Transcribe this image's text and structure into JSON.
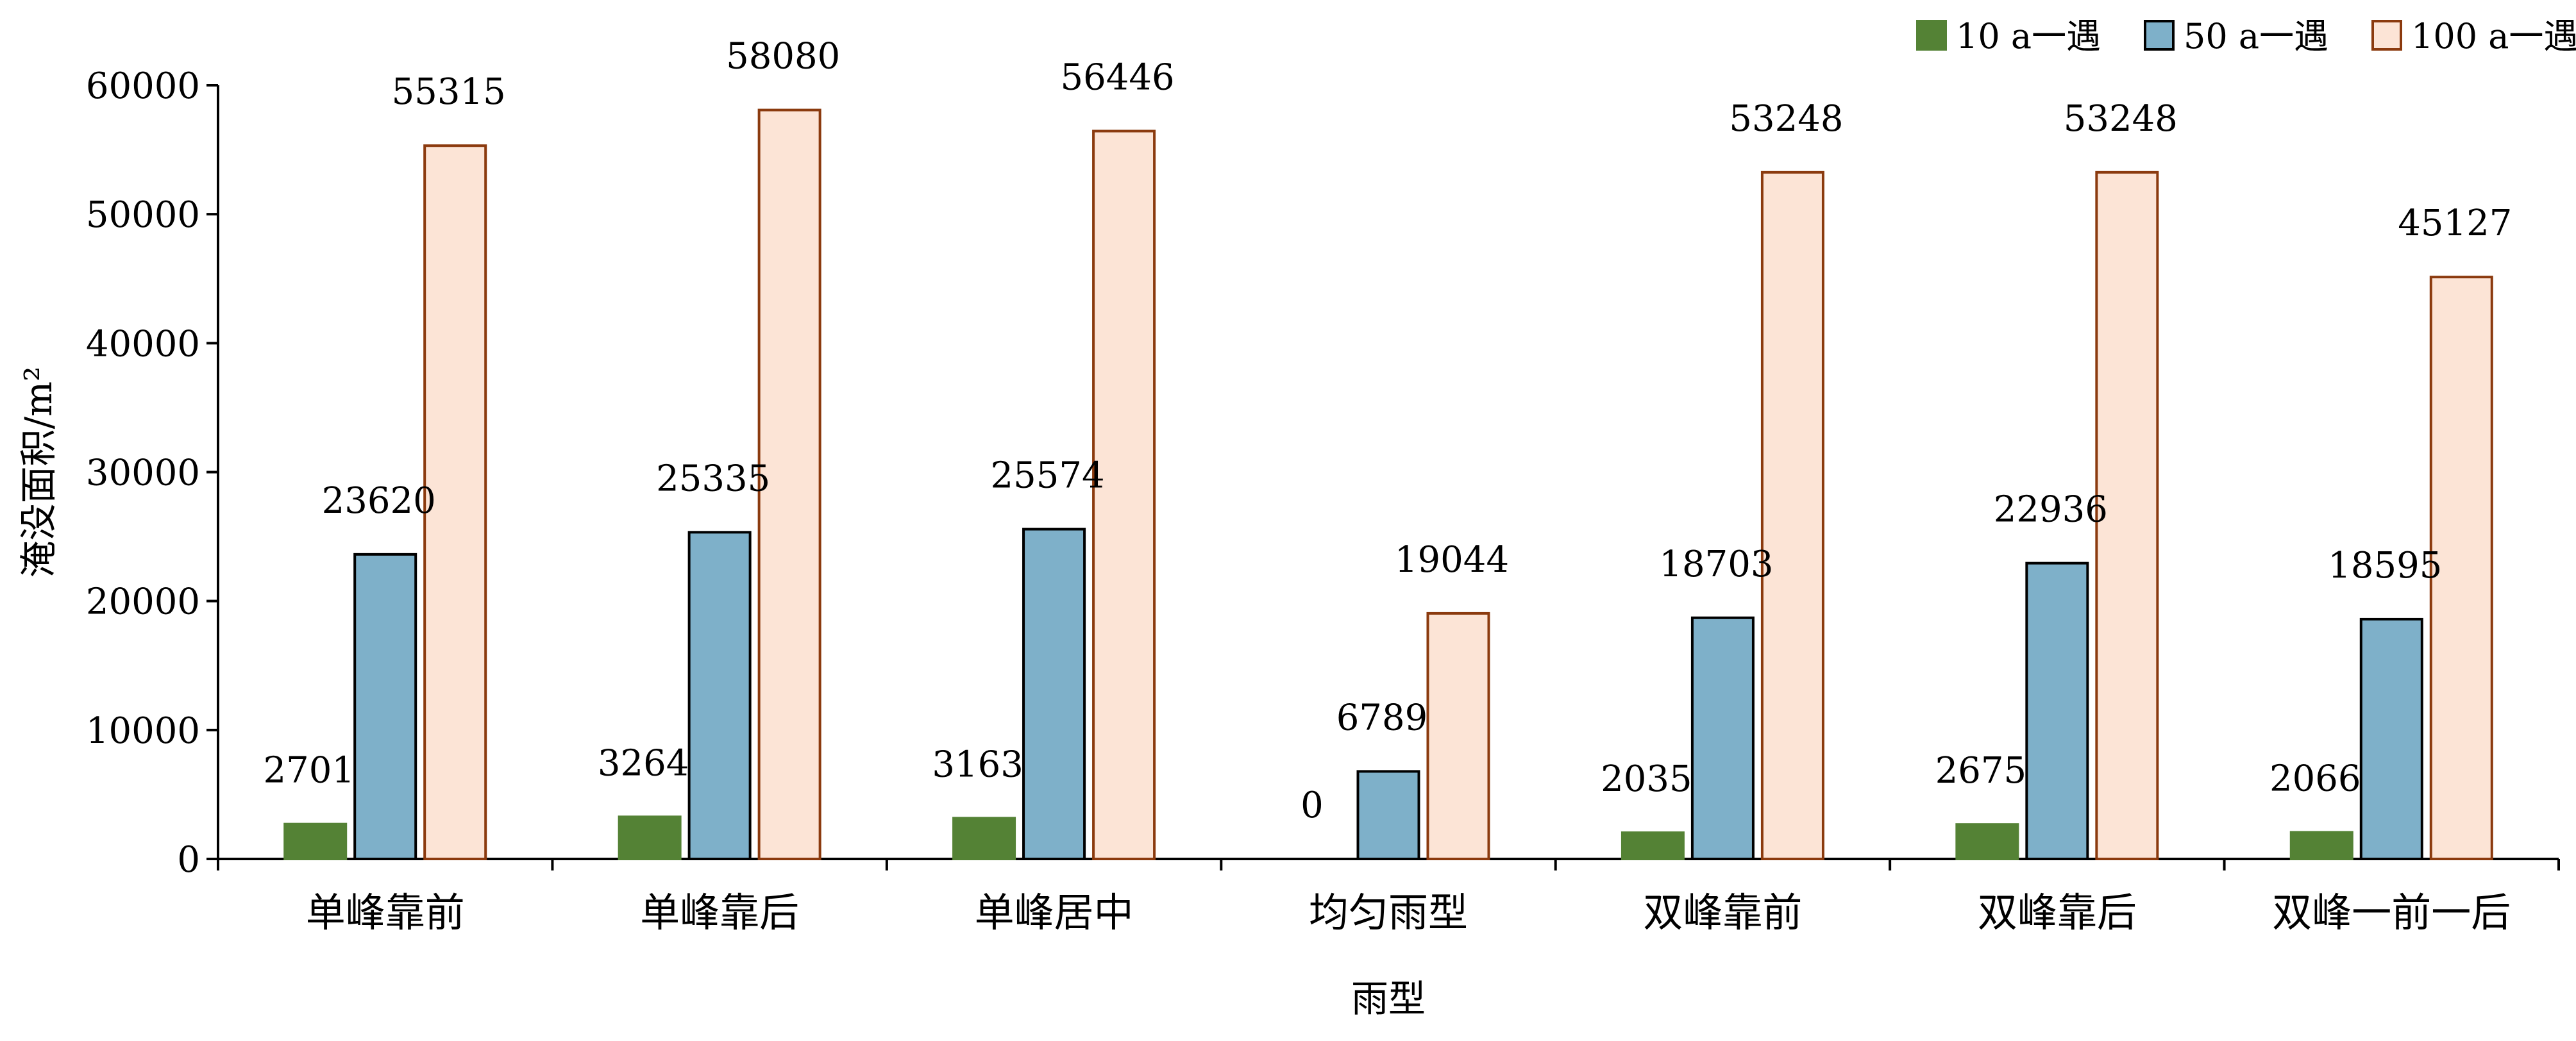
{
  "chart_data": {
    "type": "bar",
    "title": "",
    "xlabel": "雨型",
    "ylabel": "淹没面积/m²",
    "ylim": [
      0,
      60000
    ],
    "yticks": [
      0,
      10000,
      20000,
      30000,
      40000,
      50000,
      60000
    ],
    "categories": [
      "单峰靠前",
      "单峰靠后",
      "单峰居中",
      "均匀雨型",
      "双峰靠前",
      "双峰靠后",
      "双峰一前一后"
    ],
    "series": [
      {
        "name": "10 a一遇",
        "values": [
          2701,
          3264,
          3163,
          0,
          2035,
          2675,
          2066
        ],
        "fill": "#548235",
        "stroke": "#548235"
      },
      {
        "name": "50 a一遇",
        "values": [
          23620,
          25335,
          25574,
          6789,
          18703,
          22936,
          18595
        ],
        "fill": "#7eb0c9",
        "stroke": "#000000"
      },
      {
        "name": "100 a一遇",
        "values": [
          55315,
          58080,
          56446,
          19044,
          53248,
          53248,
          45127
        ],
        "fill": "#fce4d6",
        "stroke": "#8b3a0e"
      }
    ],
    "legend": "top-right",
    "grid": false
  }
}
